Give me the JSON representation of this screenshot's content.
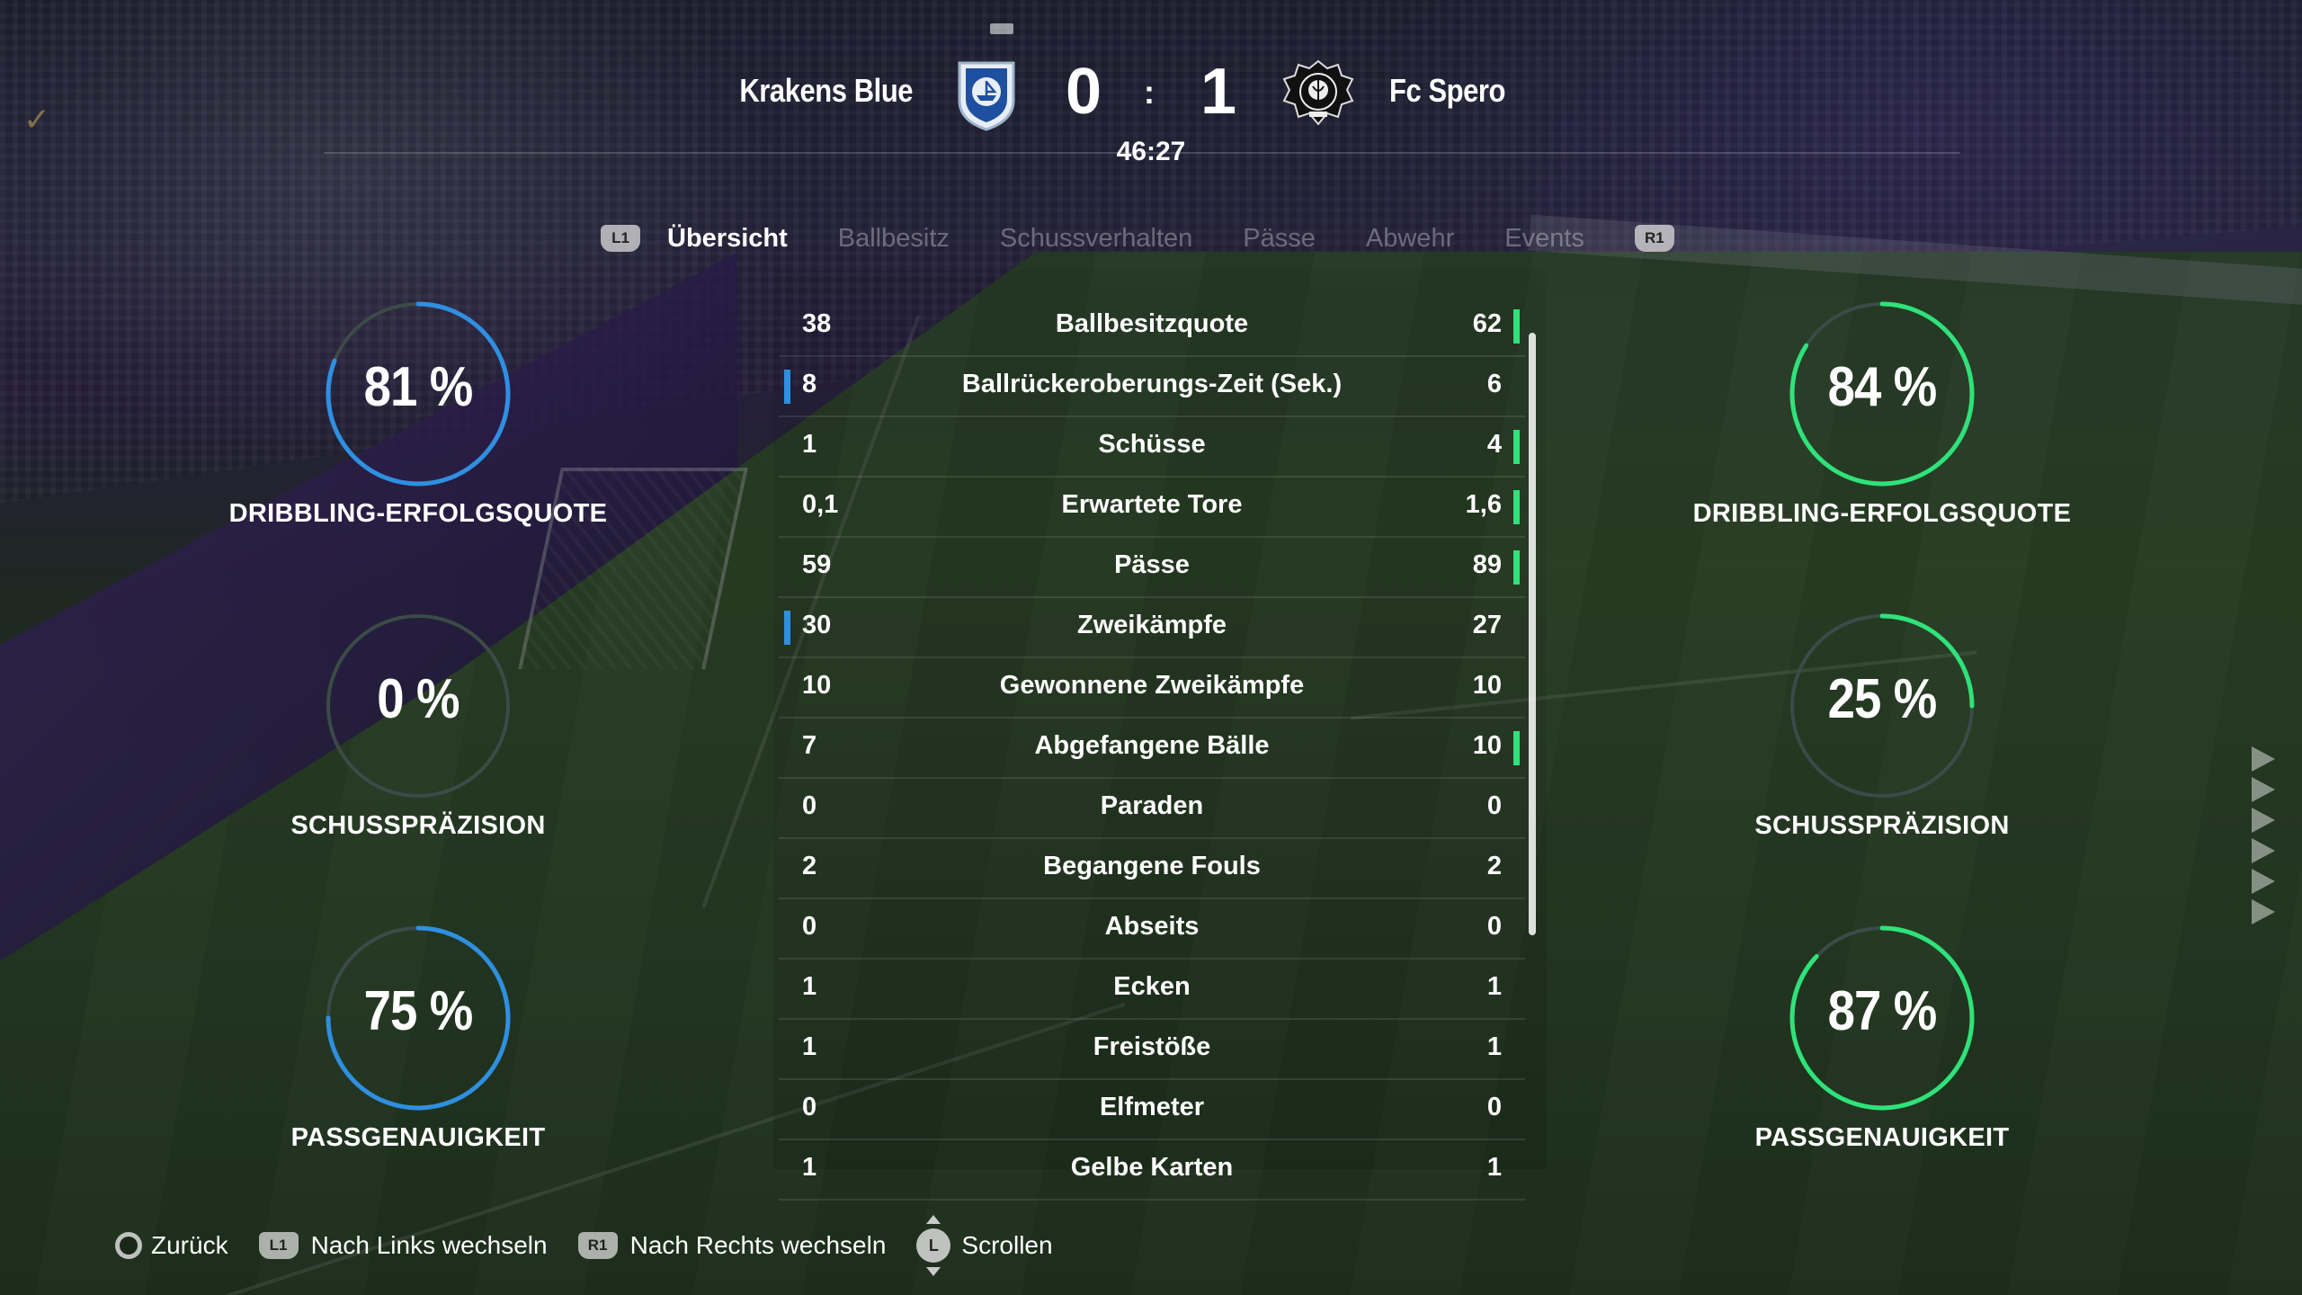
{
  "match": {
    "home_team": "Krakens Blue",
    "away_team": "Fc Spero",
    "home_score": "0",
    "away_score": "1",
    "score_separator": ":",
    "time": "46:27"
  },
  "tabs": {
    "left_button": "L1",
    "right_button": "R1",
    "items": [
      "Übersicht",
      "Ballbesitz",
      "Schussverhalten",
      "Pässe",
      "Abwehr",
      "Events"
    ],
    "active": "Übersicht"
  },
  "stats": [
    {
      "label": "Ballbesitzquote",
      "home": "38",
      "away": "62",
      "leader": "away"
    },
    {
      "label": "Ballrückeroberungs-Zeit (Sek.)",
      "home": "8",
      "away": "6",
      "leader": "home"
    },
    {
      "label": "Schüsse",
      "home": "1",
      "away": "4",
      "leader": "away"
    },
    {
      "label": "Erwartete Tore",
      "home": "0,1",
      "away": "1,6",
      "leader": "away"
    },
    {
      "label": "Pässe",
      "home": "59",
      "away": "89",
      "leader": "away"
    },
    {
      "label": "Zweikämpfe",
      "home": "30",
      "away": "27",
      "leader": "home"
    },
    {
      "label": "Gewonnene Zweikämpfe",
      "home": "10",
      "away": "10",
      "leader": "none"
    },
    {
      "label": "Abgefangene Bälle",
      "home": "7",
      "away": "10",
      "leader": "away"
    },
    {
      "label": "Paraden",
      "home": "0",
      "away": "0",
      "leader": "none"
    },
    {
      "label": "Begangene Fouls",
      "home": "2",
      "away": "2",
      "leader": "none"
    },
    {
      "label": "Abseits",
      "home": "0",
      "away": "0",
      "leader": "none"
    },
    {
      "label": "Ecken",
      "home": "1",
      "away": "1",
      "leader": "none"
    },
    {
      "label": "Freistöße",
      "home": "1",
      "away": "1",
      "leader": "none"
    },
    {
      "label": "Elfmeter",
      "home": "0",
      "away": "0",
      "leader": "none"
    },
    {
      "label": "Gelbe Karten",
      "home": "1",
      "away": "1",
      "leader": "none"
    }
  ],
  "gauges": {
    "home": [
      {
        "value_text": "81 %",
        "fraction": 0.81,
        "label": "DRIBBLING-ERFOLGSQUOTE"
      },
      {
        "value_text": "0 %",
        "fraction": 0.0,
        "label": "SCHUSSPRÄZISION"
      },
      {
        "value_text": "75 %",
        "fraction": 0.75,
        "label": "PASSGENAUIGKEIT"
      }
    ],
    "away": [
      {
        "value_text": "84 %",
        "fraction": 0.84,
        "label": "DRIBBLING-ERFOLGSQUOTE"
      },
      {
        "value_text": "25 %",
        "fraction": 0.25,
        "label": "SCHUSSPRÄZISION"
      },
      {
        "value_text": "87 %",
        "fraction": 0.87,
        "label": "PASSGENAUIGKEIT"
      }
    ]
  },
  "colors": {
    "home_accent": "#2f8fe0",
    "away_accent": "#2fe27a",
    "gauge_track": "#3c4a48"
  },
  "footer": {
    "back": {
      "icon": "circle-button-icon",
      "label": "Zurück"
    },
    "left": {
      "button": "L1",
      "label": "Nach Links wechseln"
    },
    "right": {
      "button": "R1",
      "label": "Nach Rechts wechseln"
    },
    "scroll": {
      "button": "L",
      "label": "Scrollen"
    }
  }
}
